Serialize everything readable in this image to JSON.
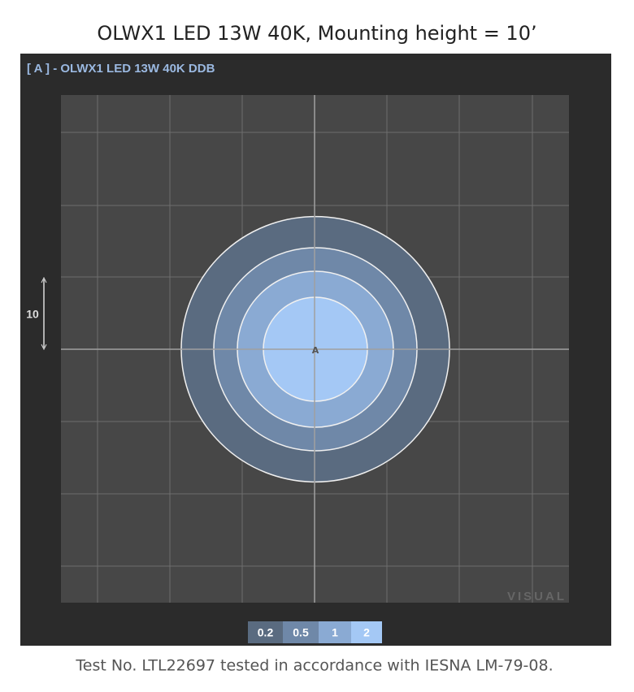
{
  "title": "OLWX1 LED 13W 40K, Mounting height = 10’",
  "panel_label": "[ A ] - OLWX1 LED 13W 40K DDB",
  "scale_label": "10",
  "luminaire_marker": "A",
  "watermark": "VISUAL",
  "legend": {
    "levels": [
      {
        "value": 0.2,
        "color": "#5a6b80"
      },
      {
        "value": 0.5,
        "color": "#6f88a8"
      },
      {
        "value": 1,
        "color": "#8aaad3"
      },
      {
        "value": 2,
        "color": "#a4c8f5"
      }
    ]
  },
  "footer": "Test No. LTL22697 tested in accordance with IESNA LM-79-08."
}
